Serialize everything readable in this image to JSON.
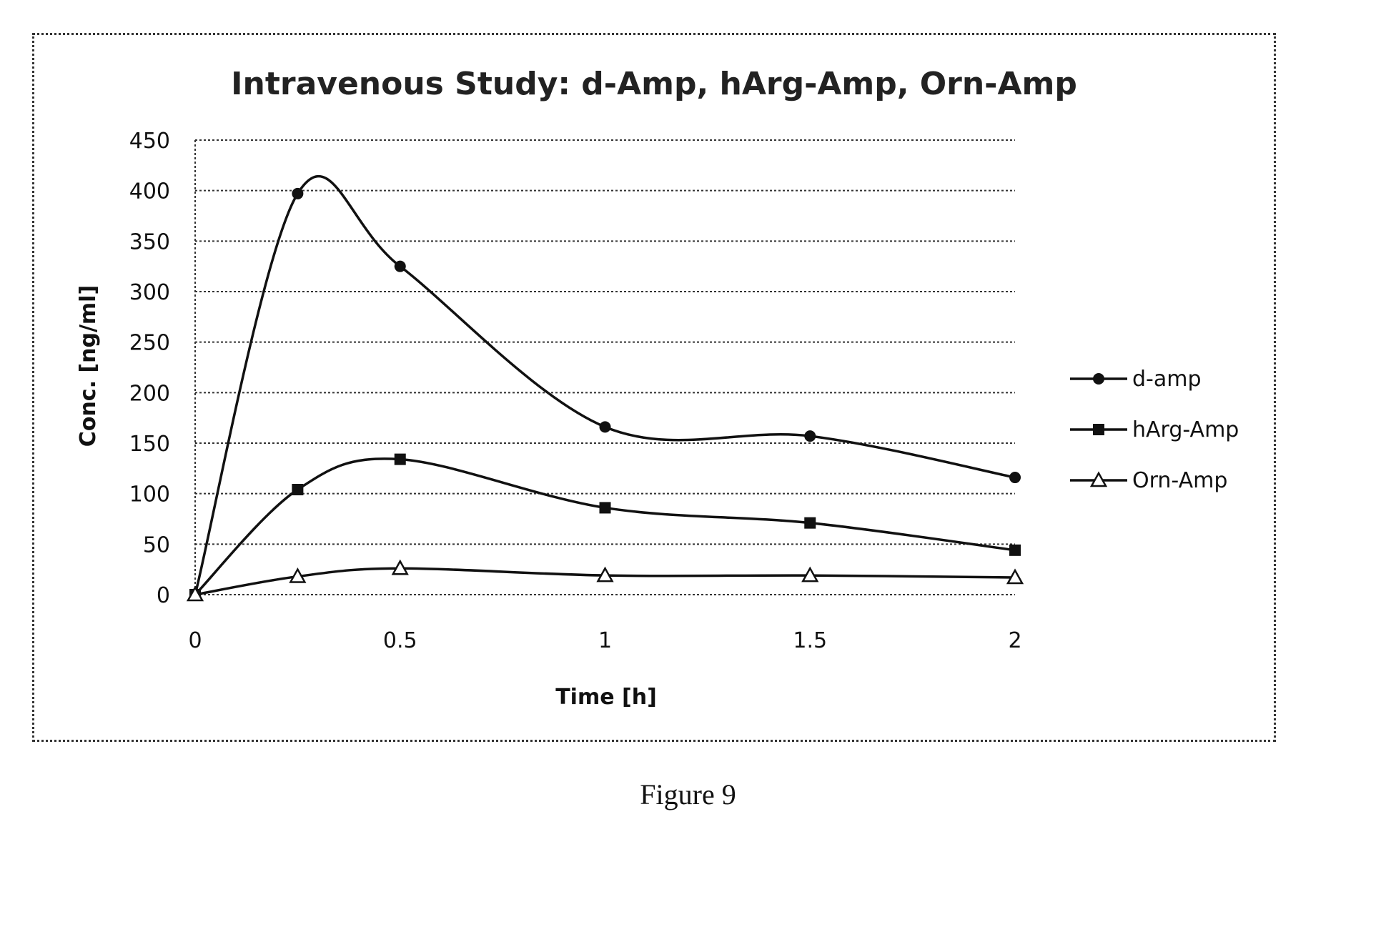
{
  "figure_caption": "Figure 9",
  "chart_data": {
    "type": "line",
    "title": "Intravenous Study: d-Amp, hArg-Amp, Orn-Amp",
    "xlabel": "Time [h]",
    "ylabel": "Conc. [ng/ml]",
    "xlim": [
      0,
      2
    ],
    "ylim": [
      0,
      450
    ],
    "xticks": [
      0,
      0.5,
      1,
      1.5,
      2
    ],
    "xtick_labels": [
      "0",
      "0.5",
      "1",
      "1.5",
      "2"
    ],
    "yticks": [
      0,
      50,
      100,
      150,
      200,
      250,
      300,
      350,
      400,
      450
    ],
    "ytick_labels": [
      "0",
      "50",
      "100",
      "150",
      "200",
      "250",
      "300",
      "350",
      "400",
      "450"
    ],
    "grid": "horizontal dotted",
    "legend_position": "right",
    "smooth": true,
    "series": [
      {
        "name": "d-amp",
        "marker": "circle",
        "x": [
          0,
          0.25,
          0.5,
          1,
          1.5,
          2
        ],
        "y": [
          0,
          397,
          325,
          166,
          157,
          116
        ]
      },
      {
        "name": "hArg-Amp",
        "marker": "square",
        "x": [
          0,
          0.25,
          0.5,
          1,
          1.5,
          2
        ],
        "y": [
          0,
          104,
          134,
          86,
          71,
          44
        ]
      },
      {
        "name": "Orn-Amp",
        "marker": "triangle",
        "x": [
          0,
          0.25,
          0.5,
          1,
          1.5,
          2
        ],
        "y": [
          0,
          18,
          26,
          19,
          19,
          17
        ]
      }
    ],
    "colors": {
      "line": "#111111",
      "grid": "#333333"
    }
  }
}
